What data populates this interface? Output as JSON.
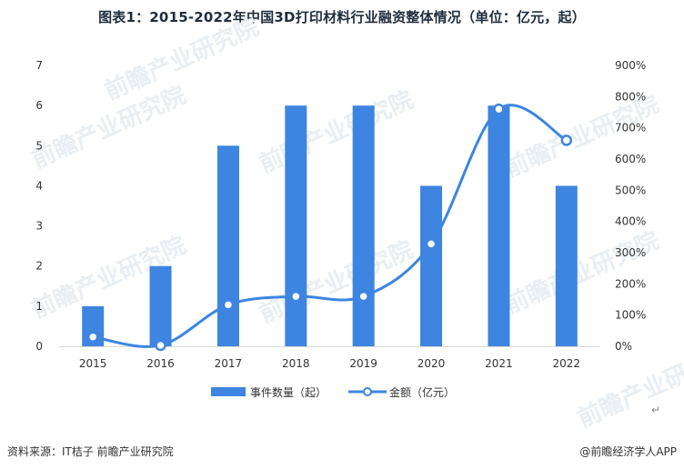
{
  "title": "图表1：2015-2022年中国3D打印材料行业融资整体情况（单位：亿元，起）",
  "source": "资料来源：IT桔子 前瞻产业研究院",
  "brand": "@前瞻经济学人APP",
  "watermark": "前瞻产业研究院",
  "colors": {
    "bar": "#3d85e0",
    "line": "#3d85e0",
    "text": "#333333",
    "axis": "#d9d9d9"
  },
  "chart_data": {
    "type": "bar",
    "categories": [
      "2015",
      "2016",
      "2017",
      "2018",
      "2019",
      "2020",
      "2021",
      "2022"
    ],
    "series": [
      {
        "name": "事件数量（起）",
        "type": "bar",
        "axis": "left",
        "values": [
          1,
          2,
          5,
          6,
          6,
          4,
          6,
          4
        ]
      },
      {
        "name": "金额（亿元）",
        "type": "line",
        "smooth": true,
        "axis": "right",
        "values": [
          30,
          3,
          133,
          160,
          160,
          328,
          760,
          660
        ]
      }
    ],
    "y_left": {
      "min": 0,
      "max": 7,
      "ticks": [
        "0",
        "1",
        "2",
        "3",
        "4",
        "5",
        "6",
        "7"
      ]
    },
    "y_right": {
      "min": 0,
      "max": 900,
      "ticks": [
        "0%",
        "100%",
        "200%",
        "300%",
        "400%",
        "500%",
        "600%",
        "700%",
        "800%",
        "900%"
      ]
    },
    "legend_position": "bottom",
    "grid": false
  }
}
